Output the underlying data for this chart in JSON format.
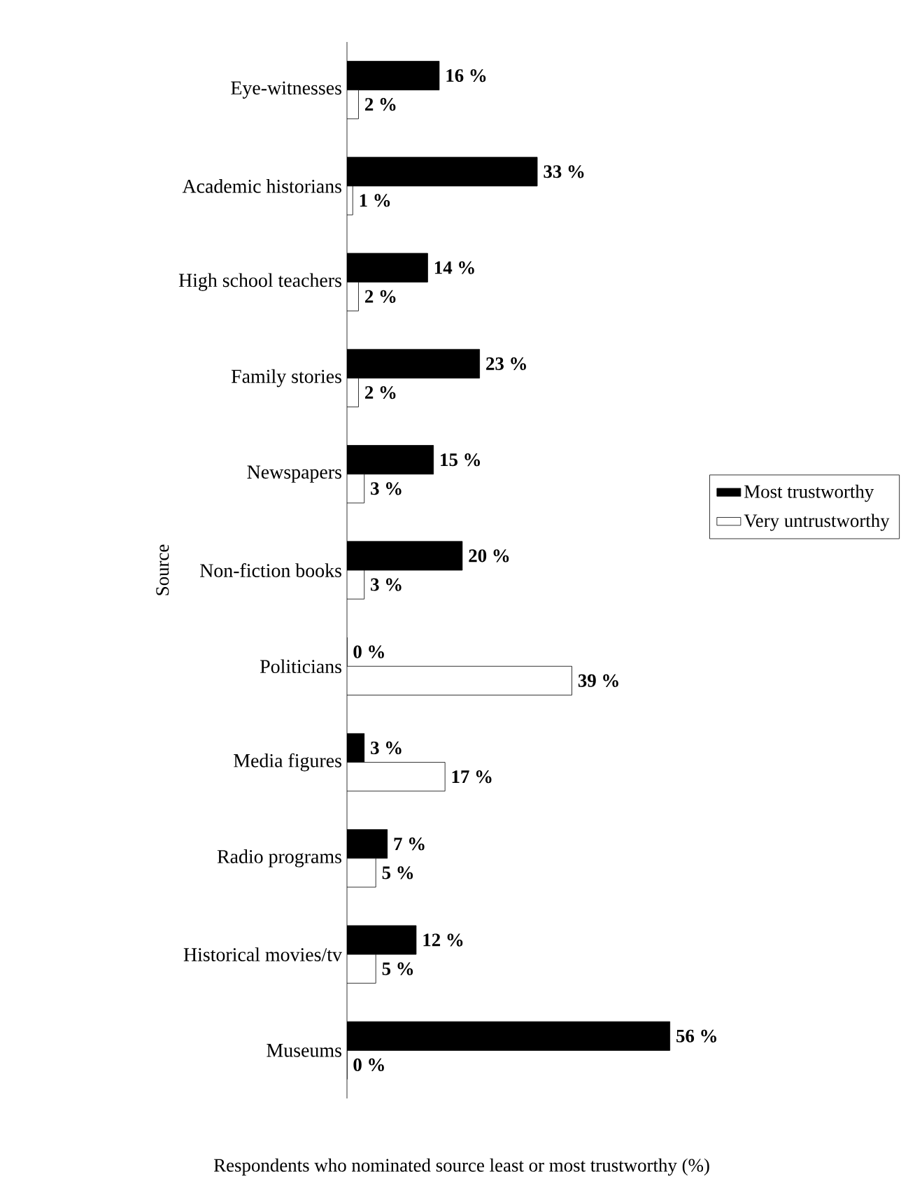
{
  "chart_data": {
    "type": "bar",
    "orientation": "horizontal",
    "xlabel": "Respondents who nominated source least or most trustworthy (%)",
    "ylabel": "Source",
    "categories": [
      "Eye-witnesses",
      "Academic historians",
      "High school teachers",
      "Family stories",
      "Newspapers",
      "Non-fiction books",
      "Politicians",
      "Media figures",
      "Radio programs",
      "Historical movies/tv",
      "Museums"
    ],
    "series": [
      {
        "name": "Most trustworthy",
        "color": "#000000",
        "values": [
          16,
          33,
          14,
          23,
          15,
          20,
          0,
          3,
          7,
          12,
          56
        ],
        "value_labels": [
          "16 %",
          "33 %",
          "14 %",
          "23 %",
          "15 %",
          "20 %",
          "0 %",
          "3 %",
          "7 %",
          "12 %",
          "56 %"
        ]
      },
      {
        "name": "Very untrustworthy",
        "color": "#ffffff",
        "values": [
          2,
          1,
          2,
          2,
          3,
          3,
          39,
          17,
          5,
          5,
          0
        ],
        "value_labels": [
          "2 %",
          "1 %",
          "2 %",
          "2 %",
          "3 %",
          "3 %",
          "39 %",
          "17 %",
          "5 %",
          "5 %",
          "0 %"
        ]
      }
    ],
    "legend": "right"
  }
}
